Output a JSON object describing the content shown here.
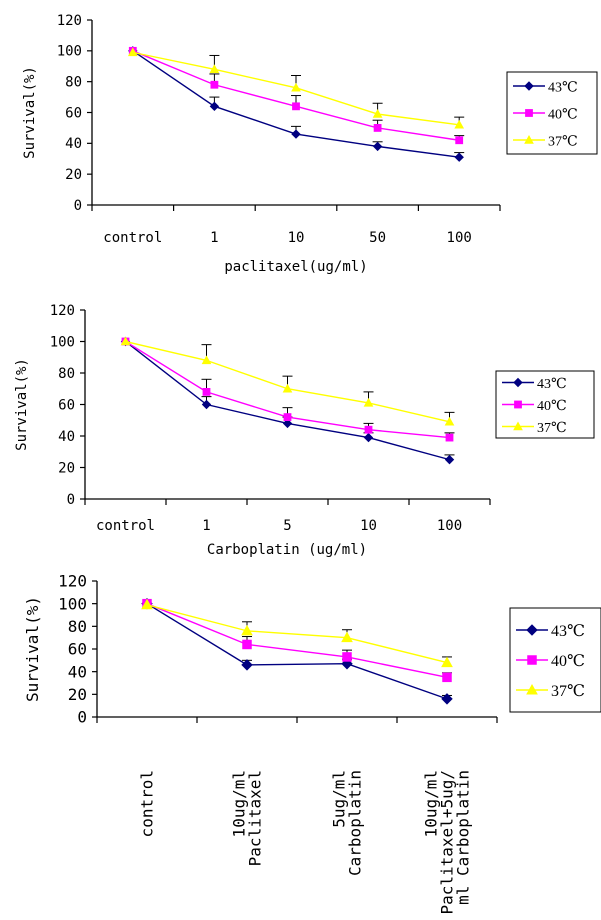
{
  "chart_data": [
    {
      "type": "line",
      "categories": [
        "control",
        "1",
        "10",
        "50",
        "100"
      ],
      "ylabel": "Survival(%)",
      "xlabel": "paclitaxel(ug/ml)",
      "ylim": [
        0,
        120
      ],
      "yticks": [
        "0",
        "20",
        "40",
        "60",
        "80",
        "100",
        "120"
      ],
      "legend_position": "right",
      "series": [
        {
          "name": "43℃",
          "color": "#000080",
          "marker": "diamond",
          "values": [
            100,
            64,
            46,
            38,
            31
          ],
          "errors": [
            0,
            6,
            5,
            3,
            3
          ]
        },
        {
          "name": "40℃",
          "color": "#FF00FF",
          "marker": "square",
          "values": [
            100,
            78,
            64,
            50,
            42
          ],
          "errors": [
            0,
            7,
            7,
            5,
            3
          ]
        },
        {
          "name": "37℃",
          "color": "#FFFF00",
          "marker": "triangle",
          "values": [
            99,
            88,
            76,
            59,
            52
          ],
          "errors": [
            0,
            9,
            8,
            7,
            5
          ]
        }
      ]
    },
    {
      "type": "line",
      "categories": [
        "control",
        "1",
        "5",
        "10",
        "100"
      ],
      "ylabel": "Survival(%)",
      "xlabel": "Carboplatin (ug/ml)",
      "ylim": [
        0,
        120
      ],
      "yticks": [
        "0",
        "20",
        "40",
        "60",
        "80",
        "100",
        "120"
      ],
      "legend_position": "right",
      "series": [
        {
          "name": "43℃",
          "color": "#000080",
          "marker": "diamond",
          "values": [
            100,
            60,
            48,
            39,
            25
          ],
          "errors": [
            0,
            5,
            4,
            3,
            3
          ]
        },
        {
          "name": "40℃",
          "color": "#FF00FF",
          "marker": "square",
          "values": [
            100,
            68,
            52,
            44,
            39
          ],
          "errors": [
            0,
            8,
            6,
            4,
            3
          ]
        },
        {
          "name": "37℃",
          "color": "#FFFF00",
          "marker": "triangle",
          "values": [
            100,
            88,
            70,
            61,
            49
          ],
          "errors": [
            0,
            10,
            8,
            7,
            6
          ]
        }
      ]
    },
    {
      "type": "line",
      "categories": [
        "control",
        "10ug/ml\nPaclitaxel",
        "5ug/ml\nCarboplatin",
        "10ug/ml\nPaclitaxel+5ug/\nml Carboplatin"
      ],
      "ylabel": "Survival(%)",
      "xlabel": "",
      "ylim": [
        0,
        120
      ],
      "yticks": [
        "0",
        "20",
        "40",
        "60",
        "80",
        "100",
        "120"
      ],
      "legend_position": "right",
      "series": [
        {
          "name": "43℃",
          "color": "#000080",
          "marker": "diamond",
          "values": [
            100,
            46,
            47,
            16
          ],
          "errors": [
            0,
            4,
            4,
            3
          ]
        },
        {
          "name": "40℃",
          "color": "#FF00FF",
          "marker": "square",
          "values": [
            100,
            64,
            53,
            35
          ],
          "errors": [
            0,
            7,
            6,
            4
          ]
        },
        {
          "name": "37℃",
          "color": "#FFFF00",
          "marker": "triangle",
          "values": [
            99,
            76,
            70,
            48
          ],
          "errors": [
            0,
            8,
            7,
            5
          ]
        }
      ]
    }
  ]
}
